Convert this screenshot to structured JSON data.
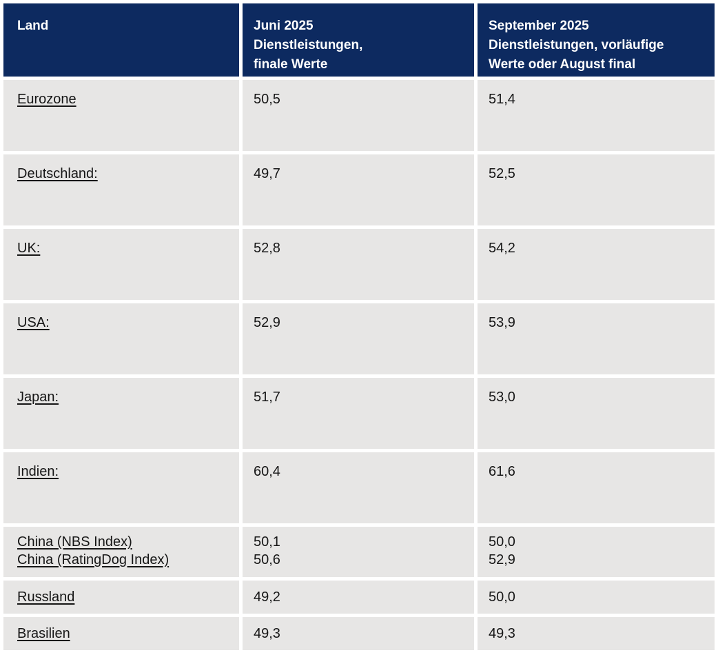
{
  "colors": {
    "header_bg": "#0d2a60",
    "header_text": "#ffffff",
    "row_bg": "#e7e6e5",
    "body_text": "#161616",
    "page_bg": "#ffffff"
  },
  "table": {
    "header": {
      "land": "Land",
      "juni": "Juni 2025\nDienstleistungen,\nfinale Werte",
      "september": "September 2025\nDienstleistungen, vorläufige\nWerte oder August final"
    },
    "rows": [
      {
        "land": "Eurozone",
        "juni": "50,5",
        "september": "51,4"
      },
      {
        "land": "Deutschland:",
        "juni": "49,7",
        "september": "52,5"
      },
      {
        "land": "UK:",
        "juni": "52,8",
        "september": "54,2"
      },
      {
        "land": "USA:",
        "juni": "52,9",
        "september": "53,9"
      },
      {
        "land": "Japan:",
        "juni": "51,7",
        "september": "53,0"
      },
      {
        "land": "Indien:",
        "juni": "60,4",
        "september": "61,6"
      },
      {
        "land": "China (NBS Index)\nChina (RatingDog Index)",
        "juni": "50,1\n50,6",
        "september": "50,0\n52,9"
      },
      {
        "land": "Russland",
        "juni": "49,2",
        "september": "50,0"
      },
      {
        "land": "Brasilien",
        "juni": "49,3",
        "september": "49,3"
      }
    ]
  },
  "chart_data": {
    "type": "table",
    "columns": [
      "Land",
      "Juni 2025 Dienstleistungen, finale Werte",
      "September 2025 Dienstleistungen, vorläufige Werte oder August final"
    ],
    "rows": [
      [
        "Eurozone",
        50.5,
        51.4
      ],
      [
        "Deutschland",
        49.7,
        52.5
      ],
      [
        "UK",
        52.8,
        54.2
      ],
      [
        "USA",
        52.9,
        53.9
      ],
      [
        "Japan",
        51.7,
        53.0
      ],
      [
        "Indien",
        60.4,
        61.6
      ],
      [
        "China (NBS Index)",
        50.1,
        50.0
      ],
      [
        "China (RatingDog Index)",
        50.6,
        52.9
      ],
      [
        "Russland",
        49.2,
        50.0
      ],
      [
        "Brasilien",
        49.3,
        49.3
      ]
    ]
  }
}
